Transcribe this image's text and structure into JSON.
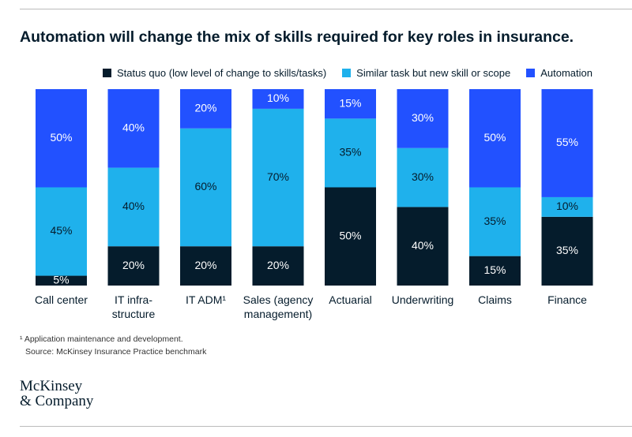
{
  "chart_data": {
    "type": "stacked_bar",
    "title": "Automation will change the mix of skills required for key roles in insurance.",
    "categories": [
      "Call center",
      "IT infra-structure",
      "IT ADM¹",
      "Sales (agency management)",
      "Actuarial",
      "Underwriting",
      "Claims",
      "Finance"
    ],
    "series": [
      {
        "name": "Status quo (low level of change to skills/tasks)",
        "color": "#051c2c",
        "values": [
          5,
          20,
          20,
          20,
          50,
          40,
          15,
          35
        ],
        "value_labels": [
          "5%",
          "20%",
          "20%",
          "20%",
          "50%",
          "40%",
          "15%",
          "35%"
        ]
      },
      {
        "name": "Similar task but new skill or scope",
        "color": "#1fb1ec",
        "values": [
          45,
          40,
          60,
          70,
          35,
          30,
          35,
          10
        ],
        "value_labels": [
          "45%",
          "40%",
          "60%",
          "70%",
          "35%",
          "30%",
          "35%",
          "10%"
        ]
      },
      {
        "name": "Automation",
        "color": "#2251ff",
        "values": [
          50,
          40,
          20,
          10,
          15,
          30,
          50,
          55
        ],
        "value_labels": [
          "50%",
          "40%",
          "20%",
          "10%",
          "15%",
          "30%",
          "50%",
          "55%"
        ]
      }
    ],
    "legend": "top-right",
    "footnotes": [
      "¹ Application maintenance and development.",
      "Source: McKinsey Insurance Practice benchmark"
    ],
    "logo": [
      "McKinsey",
      "& Company"
    ]
  }
}
